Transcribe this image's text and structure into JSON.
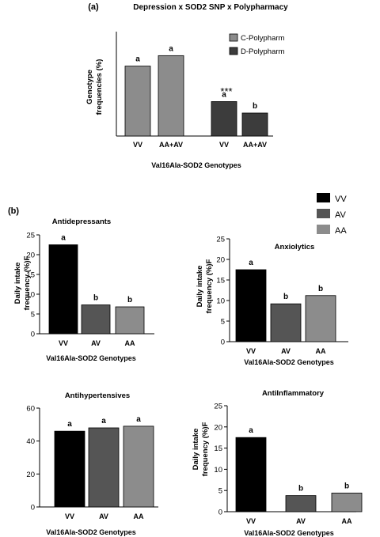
{
  "colors": {
    "vv": "#000000",
    "av": "#555555",
    "aa": "#8c8c8c",
    "c_polypharm": "#8c8c8c",
    "d_polypharm": "#3c3c3c"
  },
  "chart_data": [
    {
      "type": "bar",
      "panel_label": "(a)",
      "title": "Depression x SOD2 SNP x Polypharmacy",
      "xlabel": "Val16Ala-SOD2 Genotypes",
      "ylabel_lines": [
        "Genotype",
        "frequencies (%)"
      ],
      "categories": [
        "VV",
        "AA+AV"
      ],
      "series": [
        {
          "name": "C-Polypharm",
          "values": [
            67,
            77
          ],
          "letters": [
            "a",
            "a"
          ]
        },
        {
          "name": "D-Polypharm",
          "values": [
            33,
            22
          ],
          "letters": [
            "a",
            "b"
          ]
        }
      ],
      "annotation": "***",
      "legend": "top-right",
      "ylim": [
        0,
        100
      ]
    },
    {
      "type": "bar",
      "panel_label": "(b)",
      "title": "Antidepressants",
      "xlabel": "Val16Ala-SOD2 Genotypes",
      "ylabel_lines": [
        "Daily intake",
        "frequency (%)F"
      ],
      "categories": [
        "VV",
        "AV",
        "AA"
      ],
      "values": [
        22.5,
        7.3,
        6.8
      ],
      "letters": [
        "a",
        "b",
        "b"
      ],
      "ylim": [
        0,
        25
      ],
      "yticks": [
        "0",
        "5",
        "10",
        "15",
        "20",
        "25"
      ]
    },
    {
      "type": "bar",
      "title": "Anxiolytics",
      "xlabel": "Val16Ala-SOD2 Genotypes",
      "ylabel_lines": [
        "Daily intake",
        "frequency (%)F"
      ],
      "categories": [
        "VV",
        "AV",
        "AA"
      ],
      "values": [
        17.5,
        9.2,
        11.2
      ],
      "letters": [
        "a",
        "b",
        "b"
      ],
      "ylim": [
        0,
        25
      ],
      "yticks": [
        "0",
        "5",
        "10",
        "15",
        "20",
        "25"
      ]
    },
    {
      "type": "bar",
      "title": "Antihypertensives",
      "xlabel": "Val16Ala-SOD2 Genotypes",
      "categories": [
        "VV",
        "AV",
        "AA"
      ],
      "values": [
        46,
        48,
        49
      ],
      "letters": [
        "a",
        "a",
        "a"
      ],
      "ylim": [
        0,
        60
      ],
      "yticks": [
        "0",
        "20",
        "40",
        "60"
      ]
    },
    {
      "type": "bar",
      "title": "AntiInflammatory",
      "xlabel": "Val16Ala-SOD2 Genotypes",
      "ylabel_lines": [
        "Daily intake",
        "frequency (%)F"
      ],
      "categories": [
        "VV",
        "AV",
        "AA"
      ],
      "values": [
        17.5,
        3.8,
        4.4
      ],
      "letters": [
        "a",
        "b",
        "b"
      ],
      "ylim": [
        0,
        25
      ],
      "yticks": [
        "0",
        "5",
        "10",
        "15",
        "20",
        "25"
      ]
    }
  ],
  "legend_b": {
    "entries": [
      "VV",
      "AV",
      "AA"
    ]
  }
}
